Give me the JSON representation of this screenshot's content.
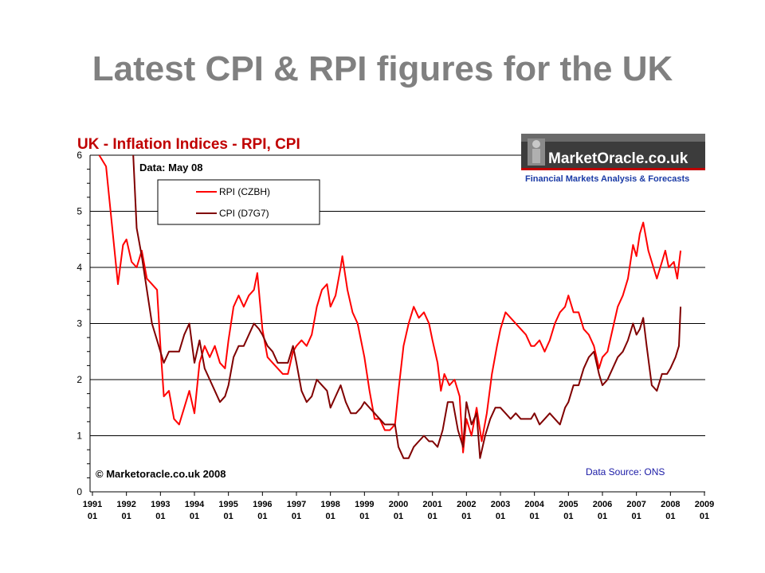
{
  "slide": {
    "title": "Latest CPI & RPI figures for the UK"
  },
  "logo": {
    "text": "MarketOracle.co.uk",
    "tagline": "Financial Markets Analysis & Forecasts"
  },
  "notes": {
    "data_date": "Data: May 08",
    "copyright": "© Marketoracle.co.uk 2008",
    "source": "Data Source: ONS"
  },
  "colors": {
    "rpi": "#ff0000",
    "cpi": "#800000",
    "title": "#c00000",
    "slide_title": "#808080"
  },
  "chart_data": {
    "type": "line",
    "title": "UK - Inflation Indices - RPI, CPI",
    "xlabel": "",
    "ylabel": "",
    "ylim": [
      0,
      6
    ],
    "xlim": [
      1991,
      2009
    ],
    "y_ticks": [
      "0",
      "1",
      "2",
      "3",
      "4",
      "5",
      "6"
    ],
    "x_ticks": [
      {
        "year": "1991",
        "month": "01"
      },
      {
        "year": "1992",
        "month": "01"
      },
      {
        "year": "1993",
        "month": "01"
      },
      {
        "year": "1994",
        "month": "01"
      },
      {
        "year": "1995",
        "month": "01"
      },
      {
        "year": "1996",
        "month": "01"
      },
      {
        "year": "1997",
        "month": "01"
      },
      {
        "year": "1998",
        "month": "01"
      },
      {
        "year": "1999",
        "month": "01"
      },
      {
        "year": "2000",
        "month": "01"
      },
      {
        "year": "2001",
        "month": "01"
      },
      {
        "year": "2002",
        "month": "01"
      },
      {
        "year": "2003",
        "month": "01"
      },
      {
        "year": "2004",
        "month": "01"
      },
      {
        "year": "2005",
        "month": "01"
      },
      {
        "year": "2006",
        "month": "01"
      },
      {
        "year": "2007",
        "month": "01"
      },
      {
        "year": "2008",
        "month": "01"
      },
      {
        "year": "2009",
        "month": "01"
      }
    ],
    "grid": "horizontal",
    "legend_position": "top-left",
    "series": [
      {
        "name": "RPI (CZBH)",
        "color": "#ff0000",
        "points": [
          [
            1991.2,
            6.0
          ],
          [
            1991.4,
            5.8
          ],
          [
            1991.6,
            4.6
          ],
          [
            1991.75,
            3.7
          ],
          [
            1991.9,
            4.4
          ],
          [
            1992.0,
            4.5
          ],
          [
            1992.15,
            4.1
          ],
          [
            1992.3,
            4.0
          ],
          [
            1992.45,
            4.3
          ],
          [
            1992.6,
            3.8
          ],
          [
            1992.75,
            3.7
          ],
          [
            1992.9,
            3.6
          ],
          [
            1993.0,
            2.6
          ],
          [
            1993.1,
            1.7
          ],
          [
            1993.25,
            1.8
          ],
          [
            1993.4,
            1.3
          ],
          [
            1993.55,
            1.2
          ],
          [
            1993.7,
            1.5
          ],
          [
            1993.85,
            1.8
          ],
          [
            1994.0,
            1.4
          ],
          [
            1994.15,
            2.3
          ],
          [
            1994.3,
            2.6
          ],
          [
            1994.45,
            2.4
          ],
          [
            1994.6,
            2.6
          ],
          [
            1994.75,
            2.3
          ],
          [
            1994.9,
            2.2
          ],
          [
            1995.0,
            2.7
          ],
          [
            1995.15,
            3.3
          ],
          [
            1995.3,
            3.5
          ],
          [
            1995.45,
            3.3
          ],
          [
            1995.6,
            3.5
          ],
          [
            1995.75,
            3.6
          ],
          [
            1995.85,
            3.9
          ],
          [
            1996.0,
            2.9
          ],
          [
            1996.15,
            2.4
          ],
          [
            1996.3,
            2.3
          ],
          [
            1996.45,
            2.2
          ],
          [
            1996.6,
            2.1
          ],
          [
            1996.75,
            2.1
          ],
          [
            1996.9,
            2.5
          ],
          [
            1997.0,
            2.6
          ],
          [
            1997.15,
            2.7
          ],
          [
            1997.3,
            2.6
          ],
          [
            1997.45,
            2.8
          ],
          [
            1997.6,
            3.3
          ],
          [
            1997.75,
            3.6
          ],
          [
            1997.9,
            3.7
          ],
          [
            1998.0,
            3.3
          ],
          [
            1998.15,
            3.5
          ],
          [
            1998.3,
            4.0
          ],
          [
            1998.35,
            4.2
          ],
          [
            1998.5,
            3.6
          ],
          [
            1998.65,
            3.2
          ],
          [
            1998.8,
            3.0
          ],
          [
            1999.0,
            2.4
          ],
          [
            1999.15,
            1.8
          ],
          [
            1999.3,
            1.3
          ],
          [
            1999.45,
            1.3
          ],
          [
            1999.6,
            1.1
          ],
          [
            1999.75,
            1.1
          ],
          [
            1999.9,
            1.2
          ],
          [
            2000.0,
            1.8
          ],
          [
            2000.15,
            2.6
          ],
          [
            2000.3,
            3.0
          ],
          [
            2000.45,
            3.3
          ],
          [
            2000.6,
            3.1
          ],
          [
            2000.75,
            3.2
          ],
          [
            2000.9,
            3.0
          ],
          [
            2001.0,
            2.7
          ],
          [
            2001.15,
            2.3
          ],
          [
            2001.25,
            1.8
          ],
          [
            2001.35,
            2.1
          ],
          [
            2001.5,
            1.9
          ],
          [
            2001.65,
            2.0
          ],
          [
            2001.8,
            1.7
          ],
          [
            2001.9,
            0.7
          ],
          [
            2002.0,
            1.3
          ],
          [
            2002.15,
            1.0
          ],
          [
            2002.3,
            1.5
          ],
          [
            2002.45,
            0.9
          ],
          [
            2002.6,
            1.4
          ],
          [
            2002.75,
            2.1
          ],
          [
            2002.9,
            2.6
          ],
          [
            2003.0,
            2.9
          ],
          [
            2003.15,
            3.2
          ],
          [
            2003.3,
            3.1
          ],
          [
            2003.45,
            3.0
          ],
          [
            2003.6,
            2.9
          ],
          [
            2003.75,
            2.8
          ],
          [
            2003.9,
            2.6
          ],
          [
            2004.0,
            2.6
          ],
          [
            2004.15,
            2.7
          ],
          [
            2004.3,
            2.5
          ],
          [
            2004.45,
            2.7
          ],
          [
            2004.6,
            3.0
          ],
          [
            2004.75,
            3.2
          ],
          [
            2004.9,
            3.3
          ],
          [
            2005.0,
            3.5
          ],
          [
            2005.15,
            3.2
          ],
          [
            2005.3,
            3.2
          ],
          [
            2005.45,
            2.9
          ],
          [
            2005.6,
            2.8
          ],
          [
            2005.75,
            2.6
          ],
          [
            2005.9,
            2.2
          ],
          [
            2006.0,
            2.4
          ],
          [
            2006.15,
            2.5
          ],
          [
            2006.3,
            2.9
          ],
          [
            2006.45,
            3.3
          ],
          [
            2006.6,
            3.5
          ],
          [
            2006.75,
            3.8
          ],
          [
            2006.9,
            4.4
          ],
          [
            2007.0,
            4.2
          ],
          [
            2007.1,
            4.6
          ],
          [
            2007.2,
            4.8
          ],
          [
            2007.35,
            4.3
          ],
          [
            2007.5,
            4.0
          ],
          [
            2007.6,
            3.8
          ],
          [
            2007.75,
            4.1
          ],
          [
            2007.85,
            4.3
          ],
          [
            2007.95,
            4.0
          ],
          [
            2008.1,
            4.1
          ],
          [
            2008.2,
            3.8
          ],
          [
            2008.3,
            4.3
          ]
        ]
      },
      {
        "name": "CPI (D7G7)",
        "color": "#800000",
        "points": [
          [
            1992.2,
            6.0
          ],
          [
            1992.3,
            4.7
          ],
          [
            1992.45,
            4.2
          ],
          [
            1992.6,
            3.6
          ],
          [
            1992.75,
            3.0
          ],
          [
            1992.9,
            2.7
          ],
          [
            1993.0,
            2.5
          ],
          [
            1993.1,
            2.3
          ],
          [
            1993.25,
            2.5
          ],
          [
            1993.4,
            2.5
          ],
          [
            1993.55,
            2.5
          ],
          [
            1993.7,
            2.8
          ],
          [
            1993.85,
            3.0
          ],
          [
            1994.0,
            2.3
          ],
          [
            1994.15,
            2.7
          ],
          [
            1994.3,
            2.2
          ],
          [
            1994.45,
            2.0
          ],
          [
            1994.6,
            1.8
          ],
          [
            1994.75,
            1.6
          ],
          [
            1994.9,
            1.7
          ],
          [
            1995.0,
            1.9
          ],
          [
            1995.15,
            2.4
          ],
          [
            1995.3,
            2.6
          ],
          [
            1995.45,
            2.6
          ],
          [
            1995.6,
            2.8
          ],
          [
            1995.75,
            3.0
          ],
          [
            1995.9,
            2.9
          ],
          [
            1996.0,
            2.8
          ],
          [
            1996.15,
            2.6
          ],
          [
            1996.3,
            2.5
          ],
          [
            1996.45,
            2.3
          ],
          [
            1996.6,
            2.3
          ],
          [
            1996.75,
            2.3
          ],
          [
            1996.9,
            2.6
          ],
          [
            1997.0,
            2.3
          ],
          [
            1997.15,
            1.8
          ],
          [
            1997.3,
            1.6
          ],
          [
            1997.45,
            1.7
          ],
          [
            1997.6,
            2.0
          ],
          [
            1997.75,
            1.9
          ],
          [
            1997.9,
            1.8
          ],
          [
            1998.0,
            1.5
          ],
          [
            1998.15,
            1.7
          ],
          [
            1998.3,
            1.9
          ],
          [
            1998.45,
            1.6
          ],
          [
            1998.6,
            1.4
          ],
          [
            1998.75,
            1.4
          ],
          [
            1998.9,
            1.5
          ],
          [
            1999.0,
            1.6
          ],
          [
            1999.15,
            1.5
          ],
          [
            1999.3,
            1.4
          ],
          [
            1999.45,
            1.3
          ],
          [
            1999.6,
            1.2
          ],
          [
            1999.75,
            1.2
          ],
          [
            1999.9,
            1.2
          ],
          [
            2000.0,
            0.8
          ],
          [
            2000.15,
            0.6
          ],
          [
            2000.3,
            0.6
          ],
          [
            2000.45,
            0.8
          ],
          [
            2000.6,
            0.9
          ],
          [
            2000.75,
            1.0
          ],
          [
            2000.9,
            0.9
          ],
          [
            2001.0,
            0.9
          ],
          [
            2001.15,
            0.8
          ],
          [
            2001.3,
            1.1
          ],
          [
            2001.45,
            1.6
          ],
          [
            2001.6,
            1.6
          ],
          [
            2001.75,
            1.1
          ],
          [
            2001.9,
            0.8
          ],
          [
            2002.0,
            1.6
          ],
          [
            2002.15,
            1.2
          ],
          [
            2002.3,
            1.4
          ],
          [
            2002.4,
            0.6
          ],
          [
            2002.55,
            1.0
          ],
          [
            2002.7,
            1.3
          ],
          [
            2002.85,
            1.5
          ],
          [
            2003.0,
            1.5
          ],
          [
            2003.15,
            1.4
          ],
          [
            2003.3,
            1.3
          ],
          [
            2003.45,
            1.4
          ],
          [
            2003.6,
            1.3
          ],
          [
            2003.75,
            1.3
          ],
          [
            2003.9,
            1.3
          ],
          [
            2004.0,
            1.4
          ],
          [
            2004.15,
            1.2
          ],
          [
            2004.3,
            1.3
          ],
          [
            2004.45,
            1.4
          ],
          [
            2004.6,
            1.3
          ],
          [
            2004.75,
            1.2
          ],
          [
            2004.9,
            1.5
          ],
          [
            2005.0,
            1.6
          ],
          [
            2005.15,
            1.9
          ],
          [
            2005.3,
            1.9
          ],
          [
            2005.45,
            2.2
          ],
          [
            2005.6,
            2.4
          ],
          [
            2005.75,
            2.5
          ],
          [
            2005.9,
            2.1
          ],
          [
            2006.0,
            1.9
          ],
          [
            2006.15,
            2.0
          ],
          [
            2006.3,
            2.2
          ],
          [
            2006.45,
            2.4
          ],
          [
            2006.6,
            2.5
          ],
          [
            2006.75,
            2.7
          ],
          [
            2006.9,
            3.0
          ],
          [
            2007.0,
            2.8
          ],
          [
            2007.1,
            2.9
          ],
          [
            2007.2,
            3.1
          ],
          [
            2007.3,
            2.6
          ],
          [
            2007.45,
            1.9
          ],
          [
            2007.6,
            1.8
          ],
          [
            2007.75,
            2.1
          ],
          [
            2007.9,
            2.1
          ],
          [
            2008.0,
            2.2
          ],
          [
            2008.15,
            2.4
          ],
          [
            2008.25,
            2.6
          ],
          [
            2008.3,
            3.3
          ]
        ]
      }
    ]
  }
}
